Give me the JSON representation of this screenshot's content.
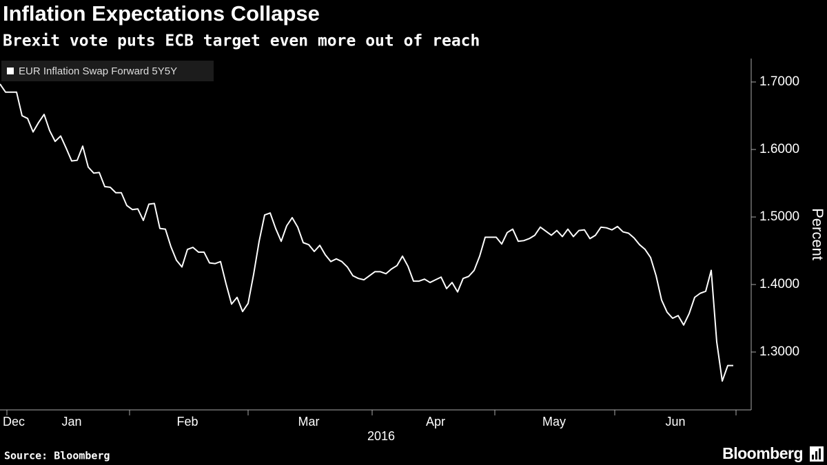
{
  "chart_data": {
    "type": "line",
    "title": "Inflation Expectations Collapse",
    "subtitle": "Brexit vote puts ECB target even more out of reach",
    "y_label": "Percent",
    "x_sublabel": "2016",
    "source": "Source: Bloomberg",
    "brand": "Bloomberg",
    "legend": "top-left",
    "grid": false,
    "xlim": [
      0,
      136.25
    ],
    "xticks": [
      {
        "value": 2.5,
        "label": "Dec"
      },
      {
        "value": 13,
        "label": "Jan"
      },
      {
        "value": 34,
        "label": "Feb"
      },
      {
        "value": 56,
        "label": "Mar"
      },
      {
        "value": 79,
        "label": "Apr"
      },
      {
        "value": 100.5,
        "label": "May"
      },
      {
        "value": 122.5,
        "label": "Jun"
      }
    ],
    "ylim": [
      1.2143,
      1.7347
    ],
    "yticks": [
      {
        "value": 1.7,
        "label": "1.7000"
      },
      {
        "value": 1.6,
        "label": "1.6000"
      },
      {
        "value": 1.5,
        "label": "1.5000"
      },
      {
        "value": 1.4,
        "label": "1.4000"
      },
      {
        "value": 1.3,
        "label": "1.3000"
      }
    ],
    "series": [
      {
        "name": "EUR Inflation Swap Forward 5Y5Y",
        "color": "#ffffff",
        "values": [
          1.697,
          1.685,
          1.685,
          1.685,
          1.65,
          1.646,
          1.626,
          1.64,
          1.652,
          1.628,
          1.612,
          1.62,
          1.602,
          1.583,
          1.584,
          1.605,
          1.574,
          1.565,
          1.566,
          1.545,
          1.544,
          1.536,
          1.536,
          1.517,
          1.511,
          1.512,
          1.495,
          1.519,
          1.52,
          1.483,
          1.482,
          1.456,
          1.436,
          1.426,
          1.452,
          1.455,
          1.448,
          1.448,
          1.432,
          1.431,
          1.434,
          1.401,
          1.371,
          1.381,
          1.36,
          1.372,
          1.415,
          1.464,
          1.503,
          1.506,
          1.483,
          1.464,
          1.487,
          1.499,
          1.485,
          1.462,
          1.459,
          1.449,
          1.458,
          1.444,
          1.434,
          1.438,
          1.434,
          1.426,
          1.413,
          1.409,
          1.407,
          1.413,
          1.419,
          1.419,
          1.416,
          1.423,
          1.428,
          1.442,
          1.427,
          1.405,
          1.405,
          1.408,
          1.403,
          1.407,
          1.411,
          1.394,
          1.403,
          1.389,
          1.409,
          1.412,
          1.421,
          1.442,
          1.47,
          1.47,
          1.47,
          1.46,
          1.477,
          1.482,
          1.464,
          1.465,
          1.468,
          1.473,
          1.485,
          1.479,
          1.473,
          1.48,
          1.471,
          1.482,
          1.471,
          1.48,
          1.481,
          1.468,
          1.473,
          1.485,
          1.484,
          1.481,
          1.486,
          1.478,
          1.476,
          1.469,
          1.459,
          1.452,
          1.44,
          1.413,
          1.377,
          1.359,
          1.35,
          1.354,
          1.34,
          1.357,
          1.381,
          1.387,
          1.39,
          1.421,
          1.315,
          1.257,
          1.28,
          1.28
        ]
      }
    ]
  }
}
